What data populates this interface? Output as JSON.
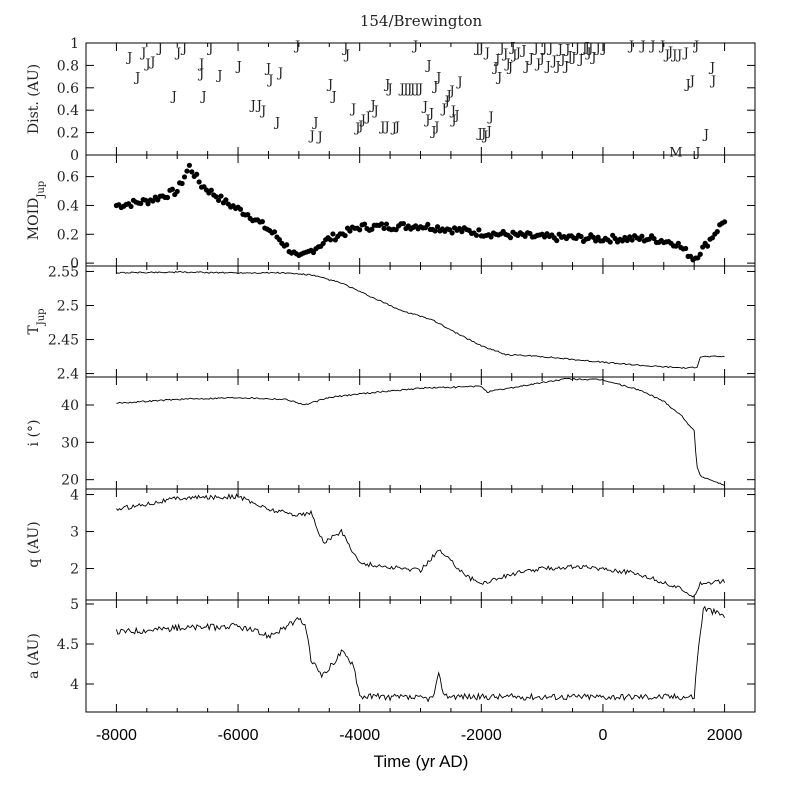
{
  "chart_data": {
    "type": "line",
    "title": "154/Brewington",
    "xlabel": "Time (yr AD)",
    "xlim": [
      -8500,
      2500
    ],
    "xticks": [
      "-8000",
      "-6000",
      "-4000",
      "-2000",
      "0",
      "2000"
    ],
    "xtick_values": [
      -8000,
      -6000,
      -4000,
      -2000,
      0,
      2000
    ],
    "panels": [
      {
        "id": "dist",
        "type": "scatter",
        "ylabel": "Dist. (AU)",
        "ylim": [
          0,
          1
        ],
        "yticks": [
          "0",
          "0.2",
          "0.4",
          "0.6",
          "0.8",
          "1"
        ],
        "ytick_values": [
          0,
          0.2,
          0.4,
          0.6,
          0.8,
          1
        ],
        "events": [
          [
            "J",
            -7780,
            0.88
          ],
          [
            "J",
            -7650,
            0.7
          ],
          [
            "J",
            -7550,
            0.92
          ],
          [
            "J",
            -7480,
            0.82
          ],
          [
            "J",
            -7400,
            0.84
          ],
          [
            "J",
            -7280,
            0.96
          ],
          [
            "J",
            -7050,
            0.53
          ],
          [
            "J",
            -6980,
            0.92
          ],
          [
            "J",
            -6880,
            0.96
          ],
          [
            "J",
            -6600,
            0.73
          ],
          [
            "J",
            -6600,
            0.82
          ],
          [
            "J",
            -6560,
            0.53
          ],
          [
            "J",
            -6450,
            0.96
          ],
          [
            "J",
            -6300,
            0.72
          ],
          [
            "J",
            -5980,
            0.8
          ],
          [
            "J",
            -5750,
            0.45
          ],
          [
            "J",
            -5650,
            0.45
          ],
          [
            "J",
            -5580,
            0.4
          ],
          [
            "J",
            -5500,
            0.78
          ],
          [
            "J",
            -5460,
            0.68
          ],
          [
            "J",
            -5350,
            0.3
          ],
          [
            "J",
            -5300,
            0.74
          ],
          [
            "J",
            -5020,
            0.98
          ],
          [
            "J",
            -4780,
            0.18
          ],
          [
            "J",
            -4720,
            0.3
          ],
          [
            "J",
            -4650,
            0.17
          ],
          [
            "J",
            -4480,
            0.64
          ],
          [
            "J",
            -4420,
            0.53
          ],
          [
            "J",
            -4230,
            0.96
          ],
          [
            "J",
            -4200,
            0.9
          ],
          [
            "J",
            -4100,
            0.42
          ],
          [
            "J",
            -4030,
            0.25
          ],
          [
            "J",
            -3980,
            0.27
          ],
          [
            "J",
            -3940,
            0.32
          ],
          [
            "J",
            -3860,
            0.35
          ],
          [
            "J",
            -3780,
            0.45
          ],
          [
            "J",
            -3730,
            0.4
          ],
          [
            "J",
            -3620,
            0.26
          ],
          [
            "J",
            -3550,
            0.26
          ],
          [
            "J",
            -3540,
            0.64
          ],
          [
            "J",
            -3500,
            0.6
          ],
          [
            "J",
            -3430,
            0.25
          ],
          [
            "J",
            -3380,
            0.26
          ],
          [
            "J",
            -3300,
            0.6
          ],
          [
            "J",
            -3240,
            0.6
          ],
          [
            "J",
            -3180,
            0.6
          ],
          [
            "J",
            -3130,
            0.6
          ],
          [
            "J",
            -3080,
            0.98
          ],
          [
            "J",
            -3060,
            0.6
          ],
          [
            "J",
            -3000,
            0.6
          ],
          [
            "J",
            -2920,
            0.44
          ],
          [
            "J",
            -2880,
            0.32
          ],
          [
            "J",
            -2860,
            0.81
          ],
          [
            "J",
            -2820,
            0.38
          ],
          [
            "J",
            -2780,
            0.22
          ],
          [
            "J",
            -2750,
            0.62
          ],
          [
            "J",
            -2730,
            0.26
          ],
          [
            "J",
            -2700,
            0.7
          ],
          [
            "J",
            -2610,
            0.42
          ],
          [
            "J",
            -2560,
            0.49
          ],
          [
            "J",
            -2530,
            0.54
          ],
          [
            "J",
            -2480,
            0.58
          ],
          [
            "J",
            -2460,
            0.4
          ],
          [
            "J",
            -2450,
            0.32
          ],
          [
            "J",
            -2400,
            0.36
          ],
          [
            "J",
            -2350,
            0.66
          ],
          [
            "J",
            -2060,
            0.96
          ],
          [
            "J",
            -2020,
            0.2
          ],
          [
            "J",
            -2000,
            0.96
          ],
          [
            "J",
            -1960,
            0.2
          ],
          [
            "J",
            -1930,
            0.18
          ],
          [
            "J",
            -1900,
            0.92
          ],
          [
            "J",
            -1870,
            0.22
          ],
          [
            "J",
            -1840,
            0.35
          ],
          [
            "J",
            -1760,
            0.79
          ],
          [
            "J",
            -1730,
            0.86
          ],
          [
            "J",
            -1700,
            0.7
          ],
          [
            "J",
            -1660,
            0.96
          ],
          [
            "J",
            -1600,
            0.91
          ],
          [
            "J",
            -1560,
            0.82
          ],
          [
            "J",
            -1520,
            0.79
          ],
          [
            "J",
            -1480,
            0.97
          ],
          [
            "J",
            -1450,
            0.9
          ],
          [
            "J",
            -1390,
            0.92
          ],
          [
            "J",
            -1300,
            0.94
          ],
          [
            "J",
            -1250,
            0.8
          ],
          [
            "J",
            -1180,
            0.87
          ],
          [
            "J",
            -1100,
            0.96
          ],
          [
            "J",
            -1060,
            0.82
          ],
          [
            "J",
            -1000,
            0.87
          ],
          [
            "J",
            -960,
            0.96
          ],
          [
            "J",
            -900,
            0.8
          ],
          [
            "J",
            -860,
            0.96
          ],
          [
            "J",
            -800,
            0.85
          ],
          [
            "J",
            -740,
            0.8
          ],
          [
            "J",
            -700,
            0.95
          ],
          [
            "J",
            -660,
            0.86
          ],
          [
            "J",
            -600,
            0.8
          ],
          [
            "J",
            -580,
            0.95
          ],
          [
            "J",
            -540,
            0.89
          ],
          [
            "J",
            -480,
            0.88
          ],
          [
            "J",
            -420,
            0.96
          ],
          [
            "J",
            -360,
            0.86
          ],
          [
            "J",
            -300,
            0.96
          ],
          [
            "J",
            -260,
            0.97
          ],
          [
            "J",
            -230,
            0.92
          ],
          [
            "J",
            -200,
            0.96
          ],
          [
            "J",
            -150,
            0.88
          ],
          [
            "J",
            -80,
            0.96
          ],
          [
            "J",
            20,
            0.96
          ],
          [
            "J",
            470,
            0.98
          ],
          [
            "J",
            660,
            0.98
          ],
          [
            "J",
            820,
            0.98
          ],
          [
            "J",
            980,
            0.98
          ],
          [
            "J",
            1060,
            0.9
          ],
          [
            "J",
            1110,
            0.93
          ],
          [
            "J",
            1180,
            0.9
          ],
          [
            "J",
            1260,
            0.9
          ],
          [
            "J",
            1370,
            0.92
          ],
          [
            "J",
            1400,
            0.64
          ],
          [
            "J",
            1470,
            0.67
          ],
          [
            "J",
            1540,
            0.98
          ],
          [
            "J",
            1560,
            0.03
          ],
          [
            "J",
            1700,
            0.19
          ],
          [
            "J",
            1800,
            0.79
          ],
          [
            "J",
            1820,
            0.67
          ],
          [
            "M",
            1200,
            0.03
          ]
        ]
      },
      {
        "id": "moid",
        "type": "scatter",
        "ylabel": "MOID",
        "ylabel_sub": "Jup",
        "ylim": [
          -0.02,
          0.75
        ],
        "yticks": [
          "0",
          "0.2",
          "0.4",
          "0.6"
        ],
        "ytick_values": [
          0,
          0.2,
          0.4,
          0.6
        ],
        "x": [
          -8000,
          -7500,
          -7000,
          -6800,
          -6600,
          -6200,
          -5800,
          -5400,
          -5000,
          -4500,
          -4000,
          -3000,
          -2000,
          -1000,
          0,
          800,
          1200,
          1500,
          1700,
          2000
        ],
        "y": [
          0.4,
          0.43,
          0.5,
          0.67,
          0.54,
          0.42,
          0.33,
          0.2,
          0.03,
          0.17,
          0.25,
          0.26,
          0.21,
          0.18,
          0.17,
          0.17,
          0.14,
          0.03,
          0.13,
          0.3
        ]
      },
      {
        "id": "tjup",
        "type": "line",
        "ylabel": "T",
        "ylabel_sub": "Jup",
        "ylim": [
          2.395,
          2.558
        ],
        "yticks": [
          "2.4",
          "2.45",
          "2.5",
          "2.55"
        ],
        "ytick_values": [
          2.4,
          2.45,
          2.5,
          2.55
        ],
        "x": [
          -8000,
          -7000,
          -6000,
          -5300,
          -4800,
          -4300,
          -3800,
          -3300,
          -2800,
          -2400,
          -2000,
          -1600,
          -1000,
          -400,
          200,
          800,
          1400,
          1550,
          1600,
          2000
        ],
        "y": [
          2.548,
          2.549,
          2.548,
          2.548,
          2.545,
          2.533,
          2.512,
          2.492,
          2.479,
          2.459,
          2.441,
          2.428,
          2.425,
          2.42,
          2.415,
          2.411,
          2.408,
          2.41,
          2.425,
          2.425
        ]
      },
      {
        "id": "incl",
        "type": "line",
        "ylabel": "i (°)",
        "ylim": [
          17.5,
          47.5
        ],
        "yticks": [
          "20",
          "30",
          "40"
        ],
        "ytick_values": [
          20,
          30,
          40
        ],
        "x": [
          -8000,
          -7000,
          -6000,
          -5200,
          -4900,
          -4500,
          -4000,
          -3000,
          -2000,
          -1900,
          -1000,
          -600,
          0,
          600,
          1000,
          1300,
          1500,
          1540,
          1600,
          2000
        ],
        "y": [
          40.5,
          41.5,
          42,
          41.5,
          40,
          42,
          43,
          44.5,
          45,
          43.5,
          46,
          47,
          46.7,
          44,
          41,
          37,
          33,
          24,
          21,
          18.5
        ]
      },
      {
        "id": "q",
        "type": "line",
        "ylabel": "q (AU)",
        "ylim": [
          1.15,
          4.15
        ],
        "yticks": [
          "2",
          "3",
          "4"
        ],
        "ytick_values": [
          2,
          3,
          4
        ],
        "x": [
          -8000,
          -7500,
          -7000,
          -6000,
          -5500,
          -5000,
          -4800,
          -4600,
          -4300,
          -4000,
          -3600,
          -3000,
          -2700,
          -2200,
          -2000,
          -1500,
          -1000,
          -500,
          0,
          600,
          1200,
          1500,
          1600,
          2000
        ],
        "y": [
          3.6,
          3.75,
          3.9,
          3.95,
          3.6,
          3.45,
          3.5,
          2.7,
          3.0,
          2.15,
          2.05,
          1.95,
          2.5,
          1.75,
          1.6,
          1.85,
          2.0,
          2.05,
          2.0,
          1.85,
          1.5,
          1.27,
          1.6,
          1.65
        ]
      },
      {
        "id": "a",
        "type": "line",
        "ylabel": "a (AU)",
        "ylim": [
          3.65,
          5.05
        ],
        "yticks": [
          "4",
          "4.5",
          "5"
        ],
        "ytick_values": [
          4,
          4.5,
          5
        ],
        "x": [
          -8000,
          -7000,
          -6000,
          -5500,
          -5000,
          -4900,
          -4800,
          -4600,
          -4300,
          -4100,
          -4000,
          -3000,
          -2800,
          -2700,
          -2600,
          -2000,
          -1000,
          0,
          1000,
          1500,
          1550,
          1650,
          2000
        ],
        "y": [
          4.65,
          4.7,
          4.72,
          4.6,
          4.8,
          4.75,
          4.3,
          4.1,
          4.4,
          4.25,
          3.85,
          3.82,
          3.82,
          4.1,
          3.85,
          3.84,
          3.84,
          3.84,
          3.84,
          3.84,
          4.3,
          4.95,
          4.85
        ]
      }
    ]
  }
}
